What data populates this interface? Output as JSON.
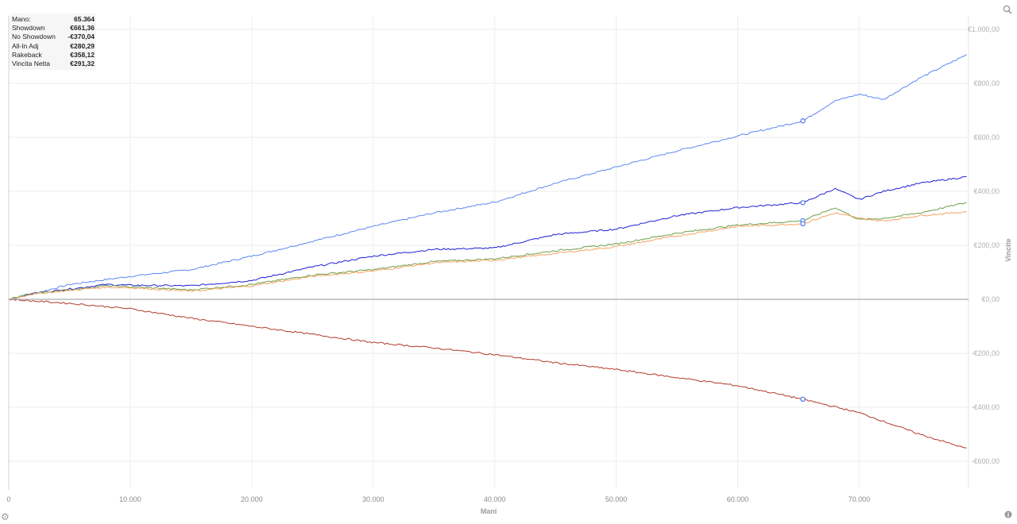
{
  "stats": [
    {
      "label": "Mano:",
      "value": "65.364"
    },
    {
      "label": "Showdown",
      "value": "€661,36"
    },
    {
      "label": "No Showdown",
      "value": "-€370,04"
    },
    {
      "label": "All-In Adj",
      "value": "€280,29"
    },
    {
      "label": "Rakeback",
      "value": "€358,12"
    },
    {
      "label": "Vincita Netta",
      "value": "€291,32"
    }
  ],
  "icons": {
    "zoom": "magnifier-icon",
    "settings": "gear-icon",
    "info": "info-icon"
  },
  "chart_data": {
    "type": "line",
    "xlabel": "Mani",
    "ylabel": "Vincite",
    "xlim": [
      0,
      79000
    ],
    "ylim": [
      -700,
      1050
    ],
    "x_ticks": [
      0,
      10000,
      20000,
      30000,
      40000,
      50000,
      60000,
      70000
    ],
    "x_tick_labels": [
      "0",
      "10.000",
      "20.000",
      "30.000",
      "40.000",
      "50.000",
      "60.000",
      "70.000"
    ],
    "y_ticks": [
      1000,
      800,
      600,
      400,
      200,
      0,
      -200,
      -400,
      -600
    ],
    "y_tick_labels": [
      "€1.000,00",
      "€800,00",
      "€600,00",
      "€400,00",
      "€200,00",
      "€0,00",
      "-€200,00",
      "-€400,00",
      "-€600,00"
    ],
    "grid": true,
    "marker_x": 65364,
    "series": [
      {
        "color": "#5b86f2",
        "x": [
          0,
          2000,
          5000,
          10000,
          15000,
          20000,
          25000,
          30000,
          35000,
          40000,
          45000,
          50000,
          55000,
          60000,
          65364,
          68000,
          70000,
          72000,
          75000,
          79000
        ],
        "y": [
          0,
          20,
          55,
          85,
          110,
          160,
          215,
          270,
          320,
          360,
          430,
          490,
          550,
          605,
          661,
          735,
          760,
          740,
          820,
          910
        ]
      },
      {
        "color": "#1f1fd6",
        "x": [
          0,
          2000,
          5000,
          8000,
          10000,
          15000,
          20000,
          25000,
          30000,
          35000,
          40000,
          45000,
          50000,
          55000,
          60000,
          65364,
          68000,
          70000,
          72000,
          75000,
          79000
        ],
        "y": [
          0,
          22,
          38,
          55,
          52,
          50,
          70,
          120,
          160,
          185,
          190,
          240,
          260,
          310,
          340,
          358,
          410,
          370,
          400,
          430,
          455
        ]
      },
      {
        "color": "#6e9e4a",
        "x": [
          0,
          2000,
          5000,
          8000,
          10000,
          15000,
          20000,
          25000,
          30000,
          35000,
          40000,
          45000,
          50000,
          55000,
          60000,
          65364,
          68000,
          70000,
          72000,
          75000,
          79000
        ],
        "y": [
          0,
          22,
          35,
          50,
          46,
          35,
          55,
          90,
          110,
          140,
          150,
          180,
          205,
          245,
          275,
          291,
          340,
          295,
          300,
          320,
          360
        ]
      },
      {
        "color": "#f4a460",
        "x": [
          0,
          2000,
          5000,
          8000,
          10000,
          15000,
          20000,
          25000,
          30000,
          35000,
          40000,
          45000,
          50000,
          55000,
          60000,
          65364,
          68000,
          70000,
          72000,
          75000,
          79000
        ],
        "y": [
          0,
          20,
          33,
          45,
          43,
          30,
          50,
          85,
          105,
          135,
          145,
          170,
          195,
          235,
          270,
          280,
          320,
          300,
          290,
          310,
          325
        ]
      },
      {
        "color": "#b23a2c",
        "x": [
          0,
          5000,
          10000,
          15000,
          20000,
          25000,
          30000,
          35000,
          40000,
          45000,
          50000,
          55000,
          60000,
          65364,
          70000,
          75000,
          79000
        ],
        "y": [
          0,
          -15,
          -35,
          -70,
          -100,
          -130,
          -160,
          -180,
          -205,
          -235,
          -260,
          -290,
          -320,
          -370,
          -420,
          -500,
          -555
        ]
      },
      {
        "color": "#aaaaaa",
        "x": [
          0,
          79000
        ],
        "y": [
          0,
          0
        ]
      }
    ]
  }
}
